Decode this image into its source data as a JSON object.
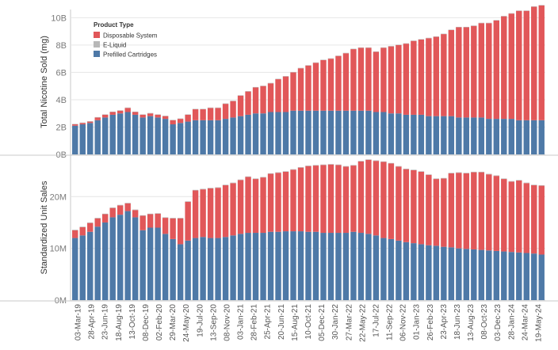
{
  "chart_data": [
    {
      "type": "bar",
      "stacked": true,
      "ylabel": "Total Nicotine Sold (mg)",
      "ylim": [
        0,
        10.6
      ],
      "y_ticks": [
        0,
        2,
        4,
        6,
        8,
        10
      ],
      "y_tick_labels": [
        "0B",
        "2B",
        "4B",
        "6B",
        "8B",
        "10B"
      ],
      "grid": true,
      "legend": {
        "title": "Product Type",
        "placement": "top-left",
        "items": [
          {
            "name": "Disposable System",
            "color": "#e15759"
          },
          {
            "name": "E-Liquid",
            "color": "#b8b8b8"
          },
          {
            "name": "Prefilled Cartridges",
            "color": "#4e79a7"
          }
        ]
      },
      "series": [
        {
          "name": "Prefilled Cartridges",
          "color": "#4e79a7",
          "values": [
            2.1,
            2.2,
            2.3,
            2.5,
            2.7,
            2.9,
            3.0,
            3.1,
            2.9,
            2.7,
            2.8,
            2.7,
            2.6,
            2.2,
            2.3,
            2.4,
            2.5,
            2.5,
            2.5,
            2.5,
            2.6,
            2.7,
            2.8,
            2.9,
            3.0,
            3.0,
            3.1,
            3.1,
            3.1,
            3.2,
            3.2,
            3.2,
            3.2,
            3.2,
            3.2,
            3.2,
            3.2,
            3.2,
            3.2,
            3.2,
            3.1,
            3.1,
            3.0,
            3.0,
            2.9,
            2.9,
            2.9,
            2.8,
            2.8,
            2.8,
            2.8,
            2.7,
            2.7,
            2.7,
            2.7,
            2.6,
            2.6,
            2.6,
            2.6,
            2.5,
            2.5,
            2.5,
            2.5
          ]
        },
        {
          "name": "Disposable System",
          "color": "#e15759",
          "values": [
            0.1,
            0.1,
            0.1,
            0.2,
            0.2,
            0.2,
            0.2,
            0.3,
            0.2,
            0.2,
            0.2,
            0.2,
            0.2,
            0.3,
            0.3,
            0.5,
            0.8,
            0.8,
            0.9,
            0.9,
            1.1,
            1.2,
            1.5,
            1.7,
            1.9,
            2.0,
            2.1,
            2.4,
            2.6,
            2.8,
            3.1,
            3.3,
            3.5,
            3.7,
            3.8,
            4.0,
            4.2,
            4.5,
            4.6,
            4.6,
            4.4,
            4.7,
            4.9,
            5.0,
            5.2,
            5.4,
            5.5,
            5.7,
            5.8,
            6.0,
            6.3,
            6.6,
            6.6,
            6.7,
            6.9,
            7.0,
            7.2,
            7.5,
            7.7,
            8.0,
            8.0,
            8.3,
            8.4
          ]
        },
        {
          "name": "E-Liquid",
          "color": "#b8b8b8",
          "values": [
            0.03,
            0.03,
            0.03,
            0.03,
            0.03,
            0.03,
            0.03,
            0.03,
            0.03,
            0.03,
            0.03,
            0.03,
            0.03,
            0.03,
            0.03,
            0.03,
            0.03,
            0.03,
            0.03,
            0.03,
            0.03,
            0.03,
            0.03,
            0.03,
            0.03,
            0.03,
            0.03,
            0.03,
            0.03,
            0.03,
            0.03,
            0.03,
            0.03,
            0.03,
            0.03,
            0.03,
            0.03,
            0.03,
            0.03,
            0.03,
            0.03,
            0.03,
            0.03,
            0.03,
            0.03,
            0.03,
            0.03,
            0.03,
            0.03,
            0.03,
            0.03,
            0.03,
            0.03,
            0.03,
            0.03,
            0.03,
            0.03,
            0.03,
            0.03,
            0.03,
            0.03,
            0.03,
            0.03
          ]
        }
      ]
    },
    {
      "type": "bar",
      "stacked": true,
      "ylabel": "Standardized Unit Sales",
      "ylim": [
        0,
        28
      ],
      "y_ticks": [
        0,
        10,
        20
      ],
      "y_tick_labels": [
        "0M",
        "10M",
        "20M"
      ],
      "grid": true,
      "x_tick_labels": [
        "03-Mar-19",
        "28-Apr-19",
        "23-Jun-19",
        "18-Aug-19",
        "13-Oct-19",
        "08-Dec-19",
        "02-Feb-20",
        "29-Mar-20",
        "24-May-20",
        "19-Jul-20",
        "13-Sep-20",
        "08-Nov-20",
        "03-Jan-21",
        "28-Feb-21",
        "25-Apr-21",
        "20-Jun-21",
        "15-Aug-21",
        "10-Oct-21",
        "05-Dec-21",
        "30-Jan-22",
        "27-Mar-22",
        "22-May-22",
        "17-Jul-22",
        "11-Sep-22",
        "06-Nov-22",
        "01-Jan-23",
        "26-Feb-23",
        "23-Apr-23",
        "18-Jun-23",
        "13-Aug-23",
        "08-Oct-23",
        "03-Dec-23",
        "28-Jan-24",
        "24-Mar-24",
        "19-May-24"
      ],
      "series": [
        {
          "name": "Prefilled Cartridges",
          "color": "#4e79a7",
          "values": [
            12.0,
            12.5,
            13.2,
            14.2,
            15.0,
            16.0,
            16.5,
            17.2,
            16.0,
            13.5,
            14.0,
            14.0,
            12.8,
            11.8,
            10.8,
            11.5,
            12.0,
            12.2,
            12.0,
            12.0,
            12.2,
            12.5,
            12.8,
            13.0,
            13.0,
            13.0,
            13.2,
            13.2,
            13.3,
            13.3,
            13.3,
            13.2,
            13.2,
            13.0,
            13.0,
            13.0,
            13.0,
            13.2,
            13.0,
            12.8,
            12.5,
            12.0,
            11.8,
            11.5,
            11.2,
            11.0,
            10.8,
            10.6,
            10.5,
            10.3,
            10.2,
            10.0,
            9.9,
            9.8,
            9.7,
            9.6,
            9.5,
            9.4,
            9.3,
            9.2,
            9.1,
            9.0,
            8.8
          ]
        },
        {
          "name": "Disposable System",
          "color": "#e15759",
          "values": [
            1.5,
            1.6,
            1.7,
            1.6,
            1.6,
            1.8,
            1.8,
            1.5,
            1.4,
            2.8,
            2.6,
            2.7,
            3.1,
            4.0,
            5.0,
            7.5,
            9.2,
            9.2,
            9.6,
            9.7,
            10.0,
            10.1,
            10.4,
            10.8,
            10.4,
            10.7,
            11.2,
            11.4,
            11.5,
            11.9,
            12.3,
            12.7,
            12.8,
            13.1,
            13.2,
            13.1,
            12.8,
            12.8,
            13.8,
            14.3,
            14.4,
            14.7,
            14.6,
            14.3,
            14.1,
            14.1,
            14.0,
            13.6,
            12.9,
            13.2,
            14.3,
            14.6,
            14.6,
            14.9,
            15.0,
            14.7,
            14.5,
            14.0,
            13.6,
            13.9,
            13.5,
            13.2,
            13.3
          ]
        },
        {
          "name": "E-Liquid",
          "color": "#b8b8b8",
          "values": [
            0.1,
            0.1,
            0.1,
            0.1,
            0.1,
            0.1,
            0.1,
            0.1,
            0.1,
            0.1,
            0.1,
            0.1,
            0.1,
            0.1,
            0.1,
            0.1,
            0.1,
            0.1,
            0.1,
            0.1,
            0.1,
            0.1,
            0.1,
            0.1,
            0.1,
            0.1,
            0.1,
            0.1,
            0.1,
            0.1,
            0.1,
            0.1,
            0.1,
            0.1,
            0.1,
            0.1,
            0.1,
            0.1,
            0.1,
            0.1,
            0.1,
            0.1,
            0.1,
            0.1,
            0.1,
            0.1,
            0.1,
            0.1,
            0.1,
            0.1,
            0.1,
            0.1,
            0.1,
            0.1,
            0.1,
            0.1,
            0.1,
            0.1,
            0.1,
            0.1,
            0.1,
            0.1,
            0.1
          ]
        }
      ]
    }
  ]
}
